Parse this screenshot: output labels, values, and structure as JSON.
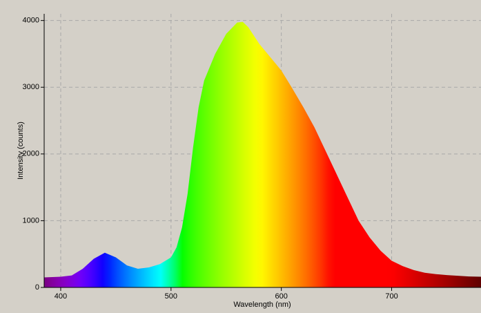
{
  "chart_data": {
    "type": "area",
    "x_label": "Wavelength (nm)",
    "y_label": "Intensity (counts)",
    "x": [
      385,
      400,
      410,
      420,
      430,
      440,
      450,
      460,
      470,
      480,
      490,
      500,
      505,
      510,
      515,
      520,
      525,
      530,
      540,
      550,
      560,
      565,
      570,
      580,
      590,
      600,
      610,
      620,
      630,
      640,
      650,
      660,
      670,
      680,
      690,
      700,
      710,
      720,
      730,
      740,
      750,
      760,
      770,
      781
    ],
    "values": [
      150,
      160,
      180,
      280,
      430,
      520,
      450,
      330,
      280,
      300,
      350,
      450,
      600,
      900,
      1400,
      2100,
      2700,
      3100,
      3500,
      3800,
      3970,
      3980,
      3900,
      3650,
      3450,
      3250,
      2980,
      2700,
      2400,
      2050,
      1700,
      1350,
      1000,
      750,
      550,
      400,
      320,
      260,
      220,
      200,
      185,
      175,
      165,
      160
    ],
    "xlim": [
      385,
      781
    ],
    "ylim": [
      0,
      4100
    ],
    "xticks": [
      400,
      500,
      600,
      700
    ],
    "yticks": [
      0,
      1000,
      2000,
      3000,
      4000
    ],
    "grid": true
  }
}
